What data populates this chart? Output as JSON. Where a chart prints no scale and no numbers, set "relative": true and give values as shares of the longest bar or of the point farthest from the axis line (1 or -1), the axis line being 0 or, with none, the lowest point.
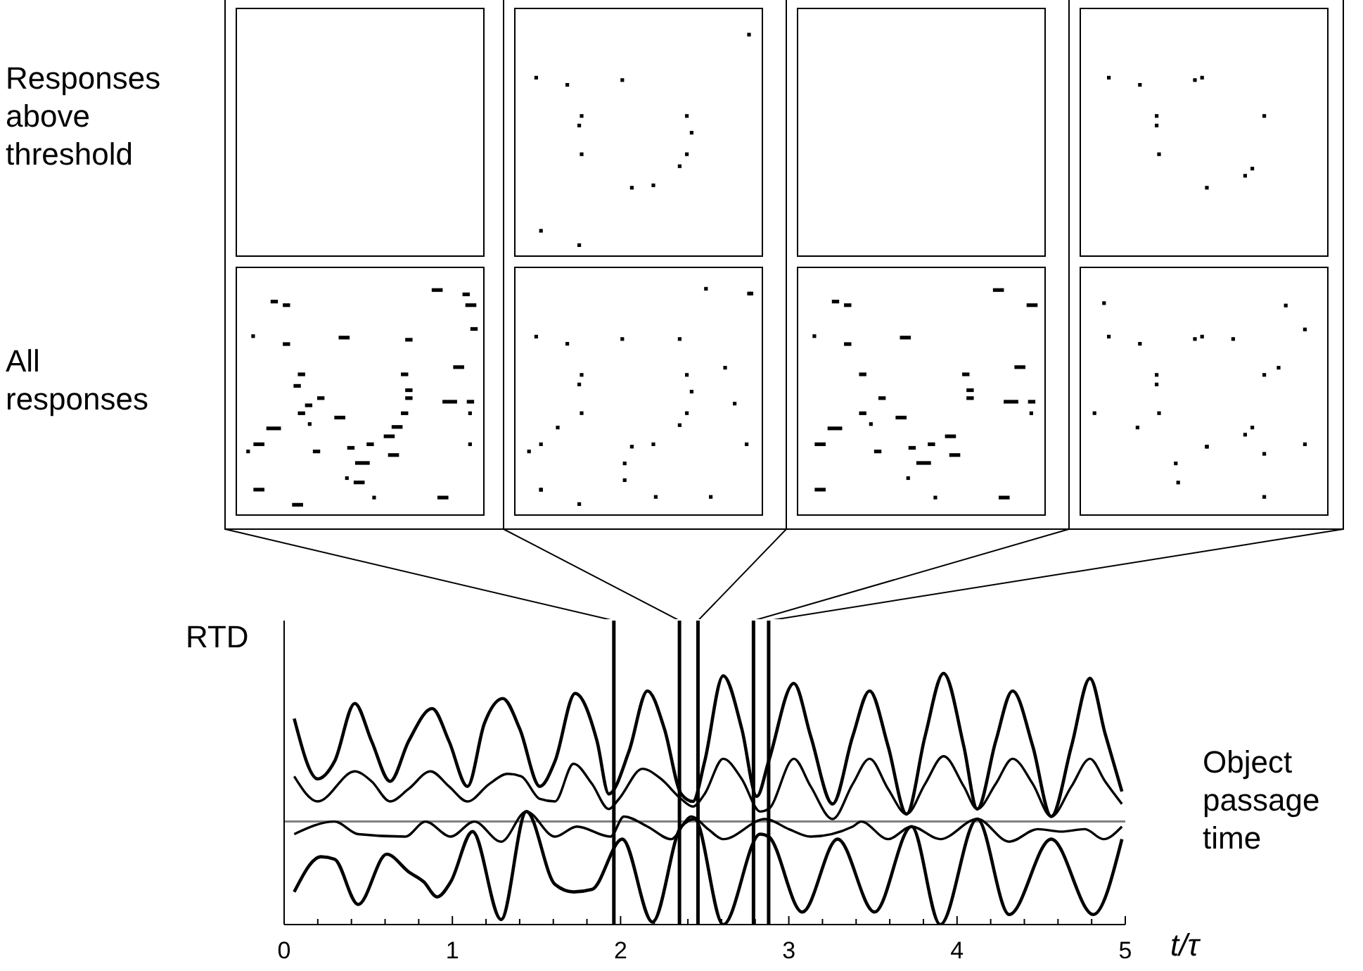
{
  "chart_data": {
    "type": "line",
    "relative": true,
    "ylabel": "RTD",
    "xlabel": "t/τ",
    "xlim": [
      0,
      5
    ],
    "xticks": [
      0,
      {
        "value": 0.2,
        "label": null
      },
      {
        "value": 0.4,
        "label": null
      },
      {
        "value": 0.6,
        "label": null
      },
      {
        "value": 0.8,
        "label": null
      },
      1,
      {
        "value": 1.2,
        "label": null
      },
      {
        "value": 1.4,
        "label": null
      },
      {
        "value": 1.6,
        "label": null
      },
      {
        "value": 1.8,
        "label": null
      },
      2,
      {
        "value": 2.2,
        "label": null
      },
      {
        "value": 2.4,
        "label": null
      },
      {
        "value": 2.6,
        "label": null
      },
      {
        "value": 2.8,
        "label": null
      },
      3,
      {
        "value": 3.2,
        "label": null
      },
      {
        "value": 3.4,
        "label": null
      },
      {
        "value": 3.6,
        "label": null
      },
      {
        "value": 3.8,
        "label": null
      },
      4,
      {
        "value": 4.2,
        "label": null
      },
      {
        "value": 4.4,
        "label": null
      },
      {
        "value": 4.6,
        "label": null
      },
      {
        "value": 4.8,
        "label": null
      },
      5
    ],
    "tick_labels": "x",
    "legend": false,
    "grid": false,
    "marker": "none",
    "line_style": "solid",
    "annotations": [
      "Responses above threshold",
      "All responses"
    ],
    "ref_lines": [
      {
        "axis": "y",
        "value": 0.41,
        "label": "Object passage time",
        "color": "#808080"
      },
      {
        "axis": "x",
        "value": 1.96,
        "label": null,
        "color": "#000000"
      },
      {
        "axis": "x",
        "value": 2.35,
        "label": null,
        "color": "#000000"
      },
      {
        "axis": "x",
        "value": 2.46,
        "label": null,
        "color": "#000000"
      },
      {
        "axis": "x",
        "value": 2.79,
        "label": null,
        "color": "#000000"
      },
      {
        "axis": "x",
        "value": 2.88,
        "label": null,
        "color": "#000000"
      }
    ],
    "series": [
      {
        "color": "#000000",
        "x": [
          0.06,
          0.2,
          0.3,
          0.42,
          0.52,
          0.63,
          0.74,
          0.88,
          0.98,
          1.09,
          1.19,
          1.3,
          1.4,
          1.52,
          1.61,
          1.73,
          1.86,
          1.93,
          2.05,
          2.16,
          2.26,
          2.36,
          2.43,
          2.5,
          2.61,
          2.72,
          2.81,
          2.88,
          3.03,
          3.13,
          3.26,
          3.38,
          3.48,
          3.59,
          3.7,
          3.81,
          3.92,
          4.04,
          4.12,
          4.23,
          4.33,
          4.45,
          4.56,
          4.68,
          4.79,
          4.88,
          4.98
        ],
        "values": [
          0.82,
          0.58,
          0.65,
          0.88,
          0.73,
          0.57,
          0.73,
          0.86,
          0.73,
          0.55,
          0.8,
          0.9,
          0.78,
          0.55,
          0.65,
          0.92,
          0.73,
          0.52,
          0.69,
          0.93,
          0.78,
          0.52,
          0.49,
          0.65,
          0.99,
          0.78,
          0.51,
          0.65,
          0.96,
          0.75,
          0.48,
          0.75,
          0.93,
          0.71,
          0.44,
          0.75,
          1.0,
          0.71,
          0.46,
          0.73,
          0.93,
          0.71,
          0.43,
          0.71,
          0.98,
          0.76,
          0.53
        ]
      },
      {
        "color": "#000000",
        "x": [
          0.06,
          0.2,
          0.42,
          0.52,
          0.63,
          0.74,
          0.87,
          0.98,
          1.09,
          1.22,
          1.33,
          1.41,
          1.52,
          1.61,
          1.72,
          1.83,
          1.93,
          1.99,
          2.13,
          2.24,
          2.36,
          2.43,
          2.5,
          2.61,
          2.72,
          2.83,
          2.88,
          3.03,
          3.13,
          3.26,
          3.38,
          3.48,
          3.59,
          3.7,
          3.81,
          3.92,
          4.04,
          4.12,
          4.23,
          4.33,
          4.45,
          4.56,
          4.68,
          4.79,
          4.88,
          4.98
        ],
        "values": [
          0.59,
          0.49,
          0.61,
          0.57,
          0.49,
          0.54,
          0.61,
          0.55,
          0.49,
          0.56,
          0.6,
          0.59,
          0.5,
          0.49,
          0.64,
          0.56,
          0.46,
          0.5,
          0.62,
          0.58,
          0.5,
          0.47,
          0.52,
          0.66,
          0.58,
          0.45,
          0.46,
          0.66,
          0.55,
          0.42,
          0.56,
          0.66,
          0.54,
          0.44,
          0.56,
          0.67,
          0.55,
          0.46,
          0.56,
          0.66,
          0.56,
          0.43,
          0.55,
          0.66,
          0.57,
          0.48
        ]
      },
      {
        "color": "#000000",
        "x": [
          0.06,
          0.3,
          0.44,
          0.72,
          0.84,
          0.99,
          1.13,
          1.29,
          1.44,
          1.61,
          1.74,
          1.94,
          2.02,
          2.16,
          2.3,
          2.42,
          2.52,
          2.61,
          2.86,
          3.0,
          3.13,
          3.38,
          3.43,
          3.59,
          3.73,
          3.9,
          4.12,
          4.31,
          4.48,
          4.62,
          4.76,
          4.87,
          4.98
        ],
        "values": [
          0.36,
          0.41,
          0.36,
          0.35,
          0.41,
          0.35,
          0.41,
          0.33,
          0.45,
          0.35,
          0.39,
          0.35,
          0.43,
          0.39,
          0.34,
          0.43,
          0.38,
          0.34,
          0.42,
          0.38,
          0.35,
          0.39,
          0.41,
          0.34,
          0.39,
          0.34,
          0.42,
          0.33,
          0.38,
          0.37,
          0.38,
          0.34,
          0.39
        ]
      },
      {
        "color": "#000000",
        "x": [
          0.06,
          0.22,
          0.3,
          0.44,
          0.61,
          0.74,
          0.83,
          0.91,
          0.99,
          1.12,
          1.29,
          1.44,
          1.61,
          1.72,
          1.83,
          2.01,
          2.19,
          2.36,
          2.44,
          2.61,
          2.83,
          2.88,
          3.08,
          3.29,
          3.51,
          3.73,
          3.9,
          4.12,
          4.31,
          4.56,
          4.81,
          4.98
        ],
        "values": [
          0.13,
          0.27,
          0.26,
          0.08,
          0.28,
          0.21,
          0.17,
          0.11,
          0.17,
          0.37,
          0.02,
          0.45,
          0.16,
          0.13,
          0.14,
          0.34,
          0.01,
          0.39,
          0.42,
          0.0,
          0.36,
          0.35,
          0.05,
          0.34,
          0.05,
          0.39,
          0.0,
          0.42,
          0.04,
          0.34,
          0.04,
          0.34
        ]
      }
    ]
  }
}
